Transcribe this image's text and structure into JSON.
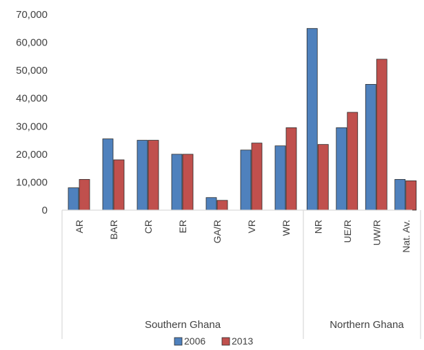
{
  "chart_data": {
    "type": "bar",
    "title": "",
    "xlabel": "",
    "ylabel": "",
    "ylim": [
      0,
      70000
    ],
    "yticks": [
      0,
      10000,
      20000,
      30000,
      40000,
      50000,
      60000,
      70000
    ],
    "ytick_labels": [
      "0",
      "10,000",
      "20,000",
      "30,000",
      "40,000",
      "50,000",
      "60,000",
      "70,000"
    ],
    "grid": false,
    "legend_position": "bottom",
    "groups": [
      {
        "name": "Southern Ghana",
        "categories": [
          "AR",
          "BAR",
          "CR",
          "ER",
          "GA/R",
          "VR",
          "WR"
        ]
      },
      {
        "name": "Northern Ghana",
        "categories": [
          "NR",
          "UE/R",
          "UW/R",
          "Nat. Av."
        ]
      }
    ],
    "categories": [
      "AR",
      "BAR",
      "CR",
      "ER",
      "GA/R",
      "VR",
      "WR",
      "NR",
      "UE/R",
      "UW/R",
      "Nat. Av."
    ],
    "series": [
      {
        "name": "2006",
        "color": "#4f81bd",
        "values": [
          8000,
          25500,
          25000,
          20000,
          4500,
          21500,
          23000,
          65000,
          29500,
          45000,
          11000
        ]
      },
      {
        "name": "2013",
        "color": "#c0504d",
        "values": [
          11000,
          18000,
          25000,
          20000,
          3500,
          24000,
          29500,
          23500,
          35000,
          54000,
          10500
        ]
      }
    ]
  }
}
